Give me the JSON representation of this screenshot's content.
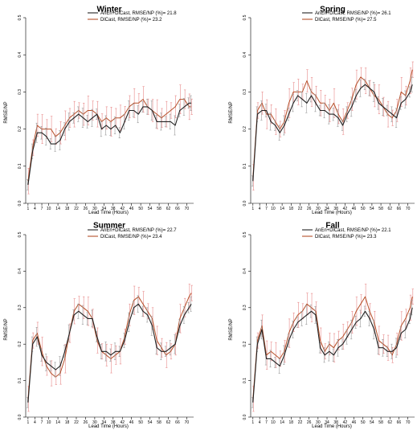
{
  "colors": {
    "anen": "#222222",
    "dlcast": "#b5502a",
    "err_anen": "#9a9a9a",
    "err_dlcast": "#e88a8a",
    "axis": "#000000"
  },
  "chart_data": [
    {
      "type": "line",
      "title": "Winter",
      "xlabel": "Lead Time (Hours)",
      "ylabel": "RMSE/NP",
      "ylim": [
        0,
        0.5
      ],
      "yticks": [
        "0.0",
        "0.1",
        "0.2",
        "0.3",
        "0.4",
        "0.5"
      ],
      "xtick_labels": [
        "1",
        "4",
        "7",
        "10",
        "14",
        "18",
        "22",
        "26",
        "30",
        "34",
        "38",
        "42",
        "46",
        "50",
        "54",
        "58",
        "62",
        "66",
        "70"
      ],
      "legend_position": "top-right",
      "x": [
        1,
        3,
        5,
        7,
        9,
        11,
        13,
        15,
        17,
        19,
        21,
        23,
        25,
        27,
        29,
        31,
        33,
        35,
        37,
        39,
        41,
        43,
        45,
        47,
        49,
        51,
        53,
        55,
        57,
        59,
        61,
        63,
        65,
        67,
        69,
        71,
        72
      ],
      "series": [
        {
          "name": "AnEn+DlCast,  RMSE/NP (%)= 21.8",
          "values": [
            0.05,
            0.14,
            0.19,
            0.19,
            0.18,
            0.16,
            0.16,
            0.17,
            0.2,
            0.22,
            0.23,
            0.24,
            0.23,
            0.22,
            0.23,
            0.24,
            0.2,
            0.21,
            0.2,
            0.21,
            0.19,
            0.22,
            0.25,
            0.25,
            0.24,
            0.26,
            0.26,
            0.25,
            0.22,
            0.22,
            0.22,
            0.22,
            0.21,
            0.25,
            0.26,
            0.27,
            0.27
          ],
          "err": 0.02
        },
        {
          "name": "DlCast,  RMSE/NP (%)= 23.2",
          "values": [
            0.06,
            0.15,
            0.21,
            0.2,
            0.2,
            0.2,
            0.18,
            0.19,
            0.21,
            0.23,
            0.24,
            0.25,
            0.24,
            0.25,
            0.25,
            0.24,
            0.22,
            0.23,
            0.22,
            0.23,
            0.23,
            0.24,
            0.26,
            0.27,
            0.27,
            0.28,
            0.26,
            0.25,
            0.24,
            0.23,
            0.24,
            0.25,
            0.26,
            0.28,
            0.28,
            0.26,
            0.26
          ],
          "err": 0.03
        }
      ]
    },
    {
      "type": "line",
      "title": "Spring",
      "xlabel": "Lead Time (Hours)",
      "ylabel": "RMSE/NP",
      "ylim": [
        0,
        0.5
      ],
      "yticks": [
        "0.0",
        "0.1",
        "0.2",
        "0.3",
        "0.4",
        "0.5"
      ],
      "xtick_labels": [
        "1",
        "4",
        "7",
        "10",
        "14",
        "18",
        "22",
        "26",
        "30",
        "34",
        "38",
        "42",
        "46",
        "50",
        "54",
        "58",
        "62",
        "66",
        "70"
      ],
      "legend_position": "top-right",
      "x": [
        1,
        3,
        5,
        7,
        9,
        11,
        13,
        15,
        17,
        19,
        21,
        23,
        25,
        27,
        29,
        31,
        33,
        35,
        37,
        39,
        41,
        43,
        45,
        47,
        49,
        51,
        53,
        55,
        57,
        59,
        61,
        63,
        65,
        67,
        69,
        71,
        72
      ],
      "series": [
        {
          "name": "AnEn+DlCast,  RMSE/NP (%)= 26.1",
          "values": [
            0.06,
            0.24,
            0.25,
            0.25,
            0.22,
            0.21,
            0.19,
            0.21,
            0.24,
            0.27,
            0.29,
            0.28,
            0.27,
            0.29,
            0.27,
            0.25,
            0.25,
            0.24,
            0.24,
            0.23,
            0.21,
            0.24,
            0.26,
            0.29,
            0.31,
            0.32,
            0.31,
            0.3,
            0.27,
            0.26,
            0.25,
            0.24,
            0.23,
            0.27,
            0.28,
            0.3,
            0.32
          ],
          "err": 0.02
        },
        {
          "name": "DlCast,  RMSE/NP (%)= 27.5",
          "values": [
            0.07,
            0.25,
            0.27,
            0.24,
            0.24,
            0.22,
            0.2,
            0.22,
            0.27,
            0.3,
            0.3,
            0.3,
            0.33,
            0.3,
            0.29,
            0.27,
            0.27,
            0.25,
            0.27,
            0.24,
            0.22,
            0.25,
            0.28,
            0.32,
            0.34,
            0.33,
            0.31,
            0.29,
            0.28,
            0.26,
            0.24,
            0.23,
            0.25,
            0.3,
            0.29,
            0.33,
            0.36
          ],
          "err": 0.03
        }
      ]
    },
    {
      "type": "line",
      "title": "Summer",
      "xlabel": "Lead Time (Hours)",
      "ylabel": "RMSE/NP",
      "ylim": [
        0,
        0.5
      ],
      "yticks": [
        "0.0",
        "0.1",
        "0.2",
        "0.3",
        "0.4",
        "0.5"
      ],
      "xtick_labels": [
        "1",
        "4",
        "7",
        "10",
        "14",
        "18",
        "22",
        "26",
        "30",
        "34",
        "38",
        "42",
        "46",
        "50",
        "54",
        "58",
        "62",
        "66",
        "70"
      ],
      "legend_position": "top-right",
      "x": [
        1,
        3,
        5,
        7,
        9,
        11,
        13,
        15,
        17,
        19,
        21,
        23,
        25,
        27,
        29,
        31,
        33,
        35,
        37,
        39,
        41,
        43,
        45,
        47,
        49,
        51,
        53,
        55,
        57,
        59,
        61,
        63,
        65,
        67,
        69,
        71,
        72
      ],
      "series": [
        {
          "name": "AnEn+DlCast,  RMSE/NP (%)= 22.7",
          "values": [
            0.04,
            0.2,
            0.22,
            0.17,
            0.15,
            0.14,
            0.13,
            0.14,
            0.18,
            0.23,
            0.28,
            0.29,
            0.28,
            0.27,
            0.27,
            0.22,
            0.18,
            0.18,
            0.17,
            0.18,
            0.18,
            0.21,
            0.26,
            0.3,
            0.31,
            0.29,
            0.28,
            0.25,
            0.19,
            0.18,
            0.18,
            0.19,
            0.2,
            0.25,
            0.28,
            0.3,
            0.31
          ],
          "err": 0.02
        },
        {
          "name": "DlCast,  RMSE/NP (%)= 23.4",
          "values": [
            0.05,
            0.21,
            0.23,
            0.18,
            0.14,
            0.12,
            0.11,
            0.12,
            0.16,
            0.23,
            0.29,
            0.31,
            0.3,
            0.29,
            0.27,
            0.21,
            0.18,
            0.17,
            0.16,
            0.17,
            0.18,
            0.22,
            0.28,
            0.32,
            0.33,
            0.31,
            0.29,
            0.27,
            0.21,
            0.19,
            0.17,
            0.18,
            0.2,
            0.27,
            0.3,
            0.33,
            0.34
          ],
          "err": 0.03
        }
      ]
    },
    {
      "type": "line",
      "title": "Fall",
      "xlabel": "Lead Time (Hours)",
      "ylabel": "RMSE/NP",
      "ylim": [
        0,
        0.5
      ],
      "yticks": [
        "0.0",
        "0.1",
        "0.2",
        "0.3",
        "0.4",
        "0.5"
      ],
      "xtick_labels": [
        "1",
        "4",
        "7",
        "10",
        "14",
        "18",
        "22",
        "26",
        "30",
        "34",
        "38",
        "42",
        "46",
        "50",
        "54",
        "58",
        "62",
        "66",
        "70"
      ],
      "legend_position": "top-right",
      "x": [
        1,
        3,
        5,
        7,
        9,
        11,
        13,
        15,
        17,
        19,
        21,
        23,
        25,
        27,
        29,
        31,
        33,
        35,
        37,
        39,
        41,
        43,
        45,
        47,
        49,
        51,
        53,
        55,
        57,
        59,
        61,
        63,
        65,
        67,
        69,
        71,
        72
      ],
      "series": [
        {
          "name": "AnEn+DlCast,  RMSE/NP (%)= 22.1",
          "values": [
            0.04,
            0.2,
            0.24,
            0.16,
            0.16,
            0.15,
            0.14,
            0.17,
            0.21,
            0.24,
            0.26,
            0.27,
            0.28,
            0.29,
            0.28,
            0.19,
            0.17,
            0.18,
            0.17,
            0.19,
            0.2,
            0.22,
            0.24,
            0.26,
            0.27,
            0.29,
            0.27,
            0.24,
            0.19,
            0.19,
            0.18,
            0.18,
            0.19,
            0.23,
            0.24,
            0.27,
            0.3
          ],
          "err": 0.02
        },
        {
          "name": "DlCast,  RMSE/NP (%)= 23.3",
          "values": [
            0.05,
            0.21,
            0.25,
            0.17,
            0.18,
            0.17,
            0.16,
            0.18,
            0.23,
            0.26,
            0.28,
            0.29,
            0.31,
            0.3,
            0.29,
            0.21,
            0.18,
            0.2,
            0.19,
            0.21,
            0.22,
            0.24,
            0.26,
            0.29,
            0.31,
            0.33,
            0.29,
            0.26,
            0.21,
            0.2,
            0.19,
            0.17,
            0.2,
            0.25,
            0.27,
            0.3,
            0.33
          ],
          "err": 0.03
        }
      ]
    }
  ]
}
